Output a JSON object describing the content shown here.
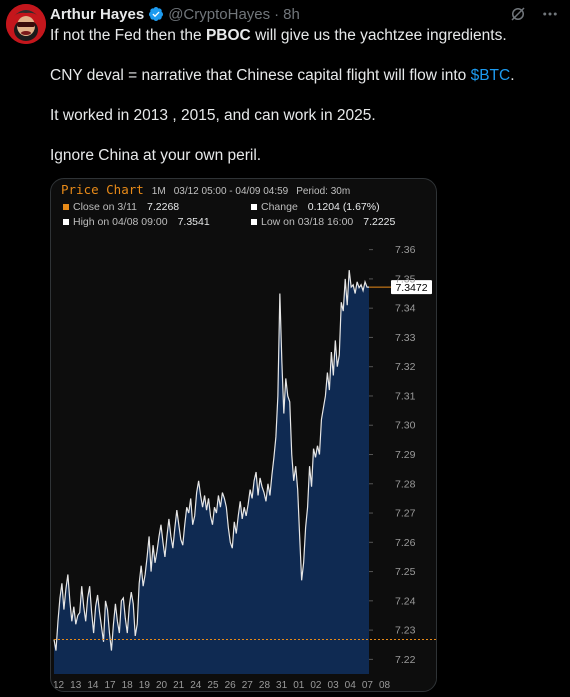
{
  "tweet": {
    "author_name": "Arthur Hayes",
    "handle": "@CryptoHayes",
    "separator": "·",
    "time": "8h",
    "paragraphs": [
      {
        "pre": "If not the Fed then the ",
        "bold": "PBOC",
        "post": " will give us the yachtzee ingredients.",
        "tag": ""
      },
      {
        "pre": "CNY deval = narrative that Chinese capital flight will flow into ",
        "bold": "",
        "post": "",
        "tag": "$BTC",
        "after": "."
      },
      {
        "pre": "It worked in 2013 , 2015, and can work in 2025.",
        "bold": "",
        "post": "",
        "tag": ""
      },
      {
        "pre": "Ignore China at your own peril.",
        "bold": "",
        "post": "",
        "tag": ""
      }
    ],
    "colors": {
      "link": "#1d9bf0",
      "verified": "#1d9bf0"
    }
  },
  "chart_data": {
    "type": "area",
    "title": "Price Chart",
    "range_label": "1M",
    "date_range": "03/12 05:00 - 04/09 04:59",
    "period": "Period: 30m",
    "stats": {
      "close_label": "Close on 3/11",
      "close_value": "7.2268",
      "change_label": "Change",
      "change_value": "0.1204 (1.67%)",
      "high_label": "High on 04/08 09:00",
      "high_value": "7.3541",
      "low_label": "Low on 03/18 16:00",
      "low_value": "7.2225"
    },
    "last_price_label": "7.3472",
    "ylim": [
      7.215,
      7.365
    ],
    "y_ticks": [
      "7.36",
      "7.35",
      "7.34",
      "7.33",
      "7.32",
      "7.31",
      "7.30",
      "7.29",
      "7.28",
      "7.27",
      "7.26",
      "7.25",
      "7.24",
      "7.23",
      "7.22"
    ],
    "x_ticks": [
      "12",
      "13",
      "14",
      "17",
      "18",
      "19",
      "20",
      "21",
      "24",
      "25",
      "26",
      "27",
      "28",
      "31",
      "01",
      "02",
      "03",
      "04",
      "07",
      "08"
    ],
    "reference_level": 7.2268,
    "colors": {
      "line": "#e6e6e6",
      "fill": "#0f2a52",
      "accent": "#e88a18",
      "grid": "#2a2a2a"
    },
    "x": [
      0,
      1,
      2,
      3,
      4,
      5,
      6,
      7,
      8,
      9,
      10,
      11,
      12,
      13,
      14,
      15,
      16,
      17,
      18,
      19,
      20,
      21,
      22,
      23,
      24,
      25,
      26,
      27,
      28,
      29,
      30,
      31,
      32,
      33,
      34,
      35,
      36,
      37,
      38,
      39,
      40,
      41,
      42,
      43,
      44,
      45,
      46,
      47,
      48,
      49,
      50,
      51,
      52,
      53,
      54,
      55,
      56,
      57,
      58,
      59,
      60,
      61,
      62,
      63,
      64,
      65,
      66,
      67,
      68,
      69,
      70,
      71,
      72,
      73,
      74,
      75,
      76,
      77,
      78,
      79,
      80,
      81,
      82,
      83,
      84,
      85,
      86,
      87,
      88,
      89,
      90,
      91,
      92,
      93,
      94,
      95,
      96,
      97,
      98,
      99,
      100,
      101,
      102,
      103,
      104,
      105,
      106,
      107,
      108,
      109,
      110,
      111,
      112,
      113,
      114,
      115,
      116,
      117,
      118,
      119,
      120,
      121,
      122,
      123,
      124,
      125,
      126,
      127,
      128,
      129,
      130,
      131,
      132,
      133,
      134,
      135,
      136,
      137,
      138,
      139,
      140,
      141,
      142,
      143,
      144,
      145,
      146,
      147,
      148,
      149,
      150,
      151,
      152,
      153,
      154,
      155,
      156,
      157,
      158,
      159
    ],
    "values": [
      7.2268,
      7.223,
      7.233,
      7.241,
      7.246,
      7.237,
      7.244,
      7.249,
      7.24,
      7.233,
      7.238,
      7.232,
      7.235,
      7.236,
      7.245,
      7.238,
      7.233,
      7.241,
      7.245,
      7.236,
      7.229,
      7.238,
      7.242,
      7.236,
      7.231,
      7.226,
      7.24,
      7.237,
      7.229,
      7.223,
      7.232,
      7.239,
      7.233,
      7.229,
      7.24,
      7.241,
      7.234,
      7.229,
      7.238,
      7.243,
      7.239,
      7.228,
      7.232,
      7.246,
      7.252,
      7.245,
      7.249,
      7.255,
      7.262,
      7.25,
      7.259,
      7.253,
      7.257,
      7.262,
      7.266,
      7.26,
      7.255,
      7.262,
      7.268,
      7.262,
      7.258,
      7.265,
      7.271,
      7.266,
      7.261,
      7.259,
      7.266,
      7.272,
      7.27,
      7.275,
      7.266,
      7.269,
      7.277,
      7.281,
      7.276,
      7.272,
      7.276,
      7.271,
      7.275,
      7.269,
      7.266,
      7.272,
      7.27,
      7.276,
      7.272,
      7.277,
      7.275,
      7.272,
      7.265,
      7.26,
      7.258,
      7.267,
      7.263,
      7.269,
      7.274,
      7.268,
      7.272,
      7.269,
      7.273,
      7.278,
      7.275,
      7.281,
      7.284,
      7.276,
      7.282,
      7.279,
      7.277,
      7.274,
      7.28,
      7.276,
      7.283,
      7.289,
      7.296,
      7.31,
      7.345,
      7.322,
      7.304,
      7.316,
      7.31,
      7.308,
      7.29,
      7.281,
      7.286,
      7.278,
      7.262,
      7.247,
      7.253,
      7.265,
      7.272,
      7.286,
      7.279,
      7.292,
      7.289,
      7.293,
      7.29,
      7.302,
      7.306,
      7.31,
      7.318,
      7.312,
      7.325,
      7.317,
      7.329,
      7.32,
      7.324,
      7.342,
      7.339,
      7.35,
      7.341,
      7.353,
      7.3472,
      7.348,
      7.345,
      7.349,
      7.347,
      7.348,
      7.346,
      7.349,
      7.3472,
      7.3472
    ]
  }
}
